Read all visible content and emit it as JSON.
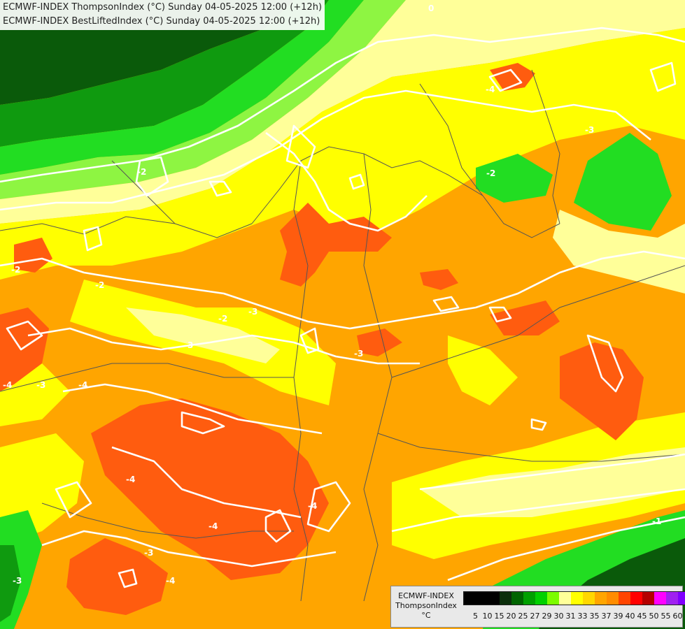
{
  "header": {
    "line1": "ECMWF-INDEX ThompsonIndex (°C) Sunday 04-05-2025 12:00 (+12h)",
    "line2": "ECMWF-INDEX BestLiftedIndex (°C) Sunday 04-05-2025 12:00 (+12h)"
  },
  "legend": {
    "title": "ECMWF-INDEX",
    "subtitle": "ThompsonIndex",
    "unit": "°C",
    "ticks": [
      "5",
      "10",
      "15",
      "20",
      "25",
      "27",
      "29",
      "30",
      "31",
      "33",
      "35",
      "37",
      "39",
      "40",
      "45",
      "50",
      "55",
      "60"
    ],
    "colors": [
      "#000000",
      "#000000",
      "#000000",
      "#0b2e0b",
      "#006400",
      "#00a000",
      "#00d000",
      "#7cfc00",
      "#ffff99",
      "#ffff00",
      "#ffd700",
      "#ffa500",
      "#ff8c00",
      "#ff4500",
      "#ff0000",
      "#b40000",
      "#ff00ff",
      "#a020f0",
      "#8000ff",
      "#0000ff"
    ]
  },
  "map": {
    "palette": {
      "darkgreen": "#0a5a0a",
      "green": "#0f9a0f",
      "brightgreen": "#22dd22",
      "lightgreen": "#8ef542",
      "paleyellow": "#ffff99",
      "yellow": "#ffff00",
      "gold": "#ffd700",
      "orange": "#ffa500",
      "redorange": "#ff5c0f",
      "contour": "#ffffff",
      "border": "#555555"
    },
    "contour_labels": [
      "-2",
      "-2",
      "-2",
      "-3",
      "-3",
      "-3",
      "-3",
      "-4",
      "-4",
      "-4",
      "-4",
      "-4",
      "-3",
      "-4",
      "-3",
      "-1",
      "-3",
      "-2",
      "0",
      "-2",
      "-4"
    ]
  }
}
